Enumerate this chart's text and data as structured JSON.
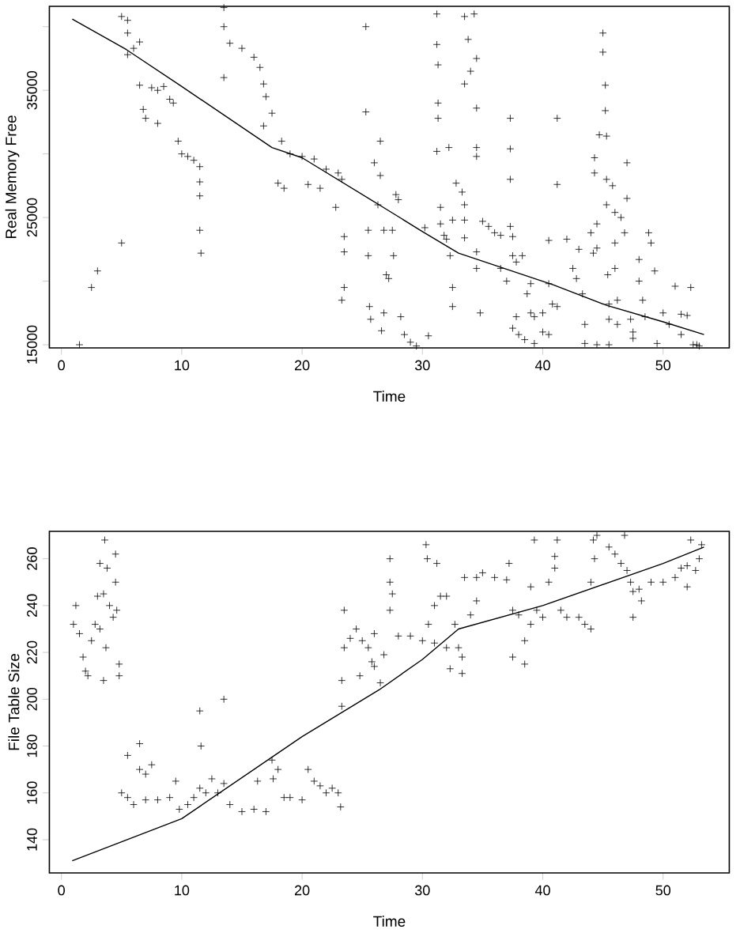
{
  "chart_data": [
    {
      "type": "scatter",
      "xlabel": "Time",
      "ylabel": "Real Memory Free",
      "xlim": [
        -1,
        55.5
      ],
      "ylim": [
        14750,
        41600
      ],
      "xticks": [
        0,
        10,
        20,
        30,
        40,
        50
      ],
      "yticks": [
        15000,
        {
          "value": 20000,
          "label": null
        },
        25000,
        {
          "value": 30000,
          "label": null
        },
        35000,
        {
          "value": 40000,
          "label": null
        }
      ],
      "series": [
        {
          "color": "#000000",
          "marker": "cross",
          "x": [
            1.5,
            2.5,
            3,
            5,
            5,
            5.5,
            5.5,
            6,
            6.5,
            5.5,
            6.5,
            7,
            6.8,
            7.5,
            8,
            8.5,
            9,
            9.3,
            8,
            9.7,
            10,
            10.5,
            11,
            11.5,
            11.5,
            11.5,
            11.5,
            11.6,
            13.5,
            13.5,
            13.5,
            14,
            15,
            16,
            16.5,
            16.8,
            17,
            17.5,
            16.8,
            18,
            18.5,
            18.3,
            19,
            20,
            21,
            20.5,
            21.5,
            22,
            23,
            23.3,
            22.8,
            23.5,
            23.5,
            23.5,
            23.3,
            25.3,
            25.3,
            25.5,
            25.5,
            25.6,
            25.7,
            26,
            26.5,
            26.5,
            26.3,
            26.8,
            27,
            26.8,
            26.6,
            27.2,
            27.5,
            27.6,
            28,
            27.8,
            28.2,
            28.5,
            29,
            29.5,
            30.5,
            30.2,
            31.2,
            31.2,
            31.3,
            31.3,
            31.3,
            31.2,
            31.5,
            31.5,
            31.8,
            32,
            32.3,
            32.5,
            32.5,
            32.5,
            32.2,
            32.8,
            33.3,
            33.5,
            33.5,
            33.5,
            33.5,
            33.8,
            34,
            33.5,
            34.3,
            34.5,
            34.5,
            34.5,
            34.5,
            34.5,
            34.5,
            34.8,
            35,
            35.5,
            36,
            36.5,
            36.5,
            37,
            37.3,
            37.3,
            37.3,
            37.3,
            37.5,
            37.5,
            37.8,
            37.8,
            37.5,
            38,
            38.5,
            38.3,
            38.7,
            39,
            39,
            39.3,
            39.3,
            40,
            40,
            40.5,
            40.8,
            40.5,
            40.5,
            41.2,
            41.2,
            41.2,
            42,
            42.5,
            42.8,
            43,
            43.3,
            43.5,
            43.5,
            44,
            44.2,
            44.5,
            44.5,
            44.5,
            44.3,
            44.3,
            44.7,
            45,
            45,
            45.2,
            45.2,
            45.3,
            45.3,
            45.3,
            45.4,
            45.5,
            45.5,
            45.5,
            45.8,
            46,
            46,
            46,
            46.2,
            46.2,
            46.5,
            46.8,
            47,
            47,
            47.3,
            47.5,
            47.5,
            48,
            48,
            48.3,
            48.5,
            48.8,
            49,
            49.3,
            49.5,
            50,
            50.5,
            51,
            51.5,
            51.5,
            52,
            52.3,
            52.5,
            52.8,
            53
          ],
          "values": [
            15000,
            19500,
            20800,
            23000,
            40800,
            40500,
            39500,
            38300,
            38800,
            37800,
            35400,
            32800,
            33500,
            35200,
            35000,
            35300,
            34300,
            34000,
            32400,
            31000,
            30000,
            29800,
            29500,
            29000,
            27800,
            26700,
            24000,
            22200,
            41500,
            40000,
            36000,
            38700,
            38300,
            37600,
            36800,
            35500,
            34500,
            33200,
            32200,
            27700,
            27300,
            31000,
            30000,
            29800,
            29600,
            27600,
            27300,
            28800,
            28500,
            28000,
            25800,
            23500,
            22300,
            19500,
            18500,
            40000,
            33300,
            24000,
            22000,
            18000,
            17000,
            29300,
            28300,
            31000,
            26000,
            24000,
            20500,
            17500,
            16100,
            20200,
            24000,
            22000,
            26400,
            26800,
            17200,
            15800,
            15200,
            14900,
            15700,
            24200,
            41000,
            38600,
            37000,
            34000,
            32800,
            30200,
            25800,
            24500,
            23600,
            23300,
            22000,
            19500,
            18000,
            24800,
            30500,
            27700,
            27000,
            26000,
            24800,
            23400,
            40800,
            39000,
            36500,
            35500,
            41000,
            37500,
            33600,
            30500,
            29800,
            21000,
            22300,
            17500,
            24700,
            24300,
            23800,
            23600,
            21000,
            20000,
            24300,
            32800,
            30400,
            28000,
            23500,
            22000,
            21500,
            17200,
            16300,
            15800,
            15400,
            22000,
            19000,
            17500,
            19800,
            15100,
            17200,
            17500,
            16000,
            23200,
            18200,
            19800,
            15800,
            32800,
            27600,
            18000,
            23300,
            21000,
            20200,
            22500,
            19000,
            16600,
            15100,
            23800,
            22200,
            22600,
            15000,
            24500,
            29700,
            28500,
            31500,
            39500,
            38000,
            35400,
            33400,
            31400,
            28000,
            26000,
            20500,
            18200,
            17000,
            15000,
            27500,
            25400,
            23000,
            21000,
            18500,
            16600,
            25000,
            23800,
            29300,
            26500,
            17000,
            16000,
            15500,
            21700,
            20000,
            18500,
            17200,
            23800,
            23000,
            20800,
            15100,
            17500,
            16600,
            19600,
            17400,
            15800,
            17300,
            19500,
            15000,
            15000,
            14900
          ]
        },
        {
          "type": "line",
          "marker": "none",
          "color": "#000000",
          "x": [
            0.9,
            5.4,
            10,
            17.5,
            20,
            26.4,
            30,
            33,
            40.9,
            45.3,
            50,
            53.4
          ],
          "values": [
            40600,
            38200,
            35300,
            30500,
            29700,
            26000,
            23900,
            22200,
            19700,
            18100,
            16800,
            15800
          ]
        }
      ]
    },
    {
      "type": "scatter",
      "xlabel": "Time",
      "ylabel": "File Table Size",
      "xlim": [
        -1,
        55.5
      ],
      "ylim": [
        125.8,
        271.7
      ],
      "xticks": [
        0,
        10,
        20,
        30,
        40,
        50
      ],
      "yticks": [
        140,
        160,
        180,
        200,
        220,
        240,
        260
      ],
      "series": [
        {
          "color": "#000000",
          "marker": "cross",
          "x": [
            1,
            1.2,
            1.5,
            1.8,
            2,
            2.2,
            2.5,
            2.8,
            3,
            3.2,
            3.5,
            3.6,
            3.5,
            3.7,
            3.8,
            4,
            4.3,
            4.5,
            4.5,
            4.6,
            4.8,
            4.8,
            3.2,
            5,
            5.5,
            6,
            5.5,
            6.5,
            6.5,
            7,
            7.5,
            7,
            8,
            9,
            9.5,
            9.8,
            10.5,
            11,
            11.5,
            11.5,
            11.6,
            12,
            12.5,
            13,
            13.5,
            13.5,
            14,
            15,
            16,
            16.3,
            17,
            17.5,
            17.6,
            18,
            18.5,
            19,
            20,
            20.5,
            21,
            21.5,
            22,
            22.5,
            23,
            23.2,
            23.3,
            23.3,
            23.5,
            23.5,
            24,
            24.5,
            24.8,
            25,
            25.5,
            25.8,
            26,
            26,
            26.5,
            26.8,
            27.3,
            27.3,
            27.5,
            27.3,
            28,
            29,
            30,
            30.3,
            30.4,
            30.5,
            31,
            31,
            31.2,
            31.5,
            32,
            32,
            32.3,
            32.7,
            33,
            33.3,
            33.3,
            33.5,
            34,
            34.5,
            34.5,
            35,
            36,
            37,
            37.2,
            37.5,
            37.5,
            38,
            38.5,
            38.5,
            39,
            39,
            39.3,
            39.5,
            40,
            40.5,
            41,
            41,
            41.2,
            41.5,
            42,
            43,
            43.5,
            44,
            44,
            44.2,
            44.3,
            44.5,
            45.5,
            46,
            46.5,
            46.8,
            47,
            47.3,
            47.5,
            47.5,
            48,
            48.2,
            49,
            50,
            51,
            51.5,
            52,
            52,
            52.3,
            53,
            53.2,
            52.7
          ],
          "values": [
            232,
            240,
            228,
            218,
            212,
            210,
            225,
            232,
            244,
            230,
            245,
            268,
            208,
            222,
            256,
            240,
            235,
            250,
            262,
            238,
            215,
            210,
            258,
            160,
            158,
            155,
            176,
            181,
            170,
            168,
            172,
            157,
            157,
            158,
            165,
            153,
            155,
            158,
            162,
            195,
            180,
            160,
            166,
            160,
            200,
            164,
            155,
            152,
            153,
            165,
            152,
            174,
            166,
            170,
            158,
            158,
            157,
            170,
            165,
            163,
            160,
            162,
            160,
            154,
            197,
            208,
            222,
            238,
            226,
            230,
            210,
            225,
            222,
            216,
            214,
            228,
            207,
            219,
            260,
            250,
            245,
            238,
            227,
            227,
            225,
            266,
            260,
            232,
            240,
            224,
            258,
            244,
            244,
            222,
            213,
            232,
            222,
            218,
            211,
            252,
            236,
            242,
            252,
            254,
            252,
            251,
            258,
            218,
            238,
            236,
            225,
            215,
            232,
            248,
            268,
            238,
            235,
            250,
            261,
            256,
            268,
            238,
            235,
            235,
            232,
            230,
            250,
            268,
            260,
            270,
            265,
            262,
            258,
            270,
            255,
            250,
            246,
            235,
            247,
            242,
            250,
            250,
            252,
            256,
            257,
            248,
            268,
            260,
            266,
            255
          ]
        },
        {
          "type": "line",
          "marker": "none",
          "color": "#000000",
          "x": [
            0.9,
            10,
            20,
            26.4,
            30,
            33,
            40,
            50,
            53.4
          ],
          "values": [
            131,
            149,
            184,
            204,
            217,
            230,
            240,
            258,
            265
          ]
        }
      ]
    }
  ]
}
